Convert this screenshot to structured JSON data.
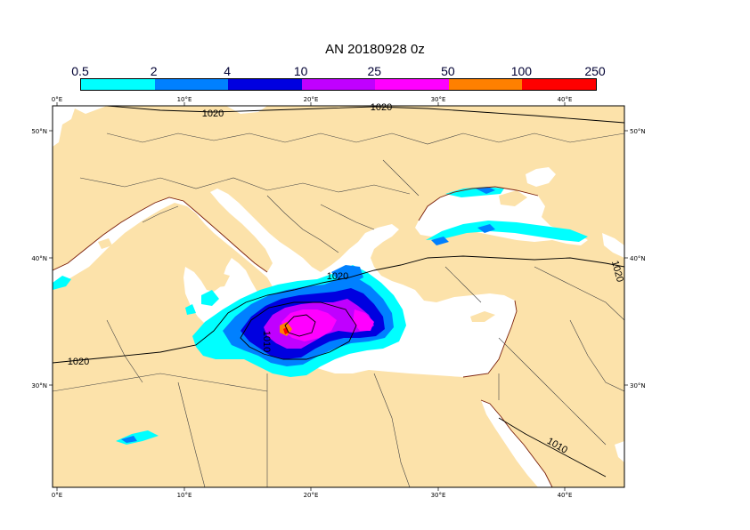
{
  "title": "AN  20180928 0z",
  "legend": {
    "labels": [
      "0.5",
      "2",
      "4",
      "10",
      "25",
      "50",
      "100",
      "250"
    ],
    "colors": [
      "#00ffff",
      "#0080ff",
      "#0000e0",
      "#c000ff",
      "#ff00ff",
      "#ff8000",
      "#ff0000"
    ]
  },
  "map": {
    "land_color": "#fce2aa",
    "sea_color": "#ffffff",
    "lon_labels": [
      "0°E",
      "10°E",
      "20°E",
      "30°E",
      "40°E"
    ],
    "lat_labels": [
      "50°N",
      "40°N",
      "30°N"
    ],
    "isobar_labels": [
      "1020",
      "1020",
      "1020",
      "1010",
      "1020",
      "1020",
      "1010"
    ]
  }
}
